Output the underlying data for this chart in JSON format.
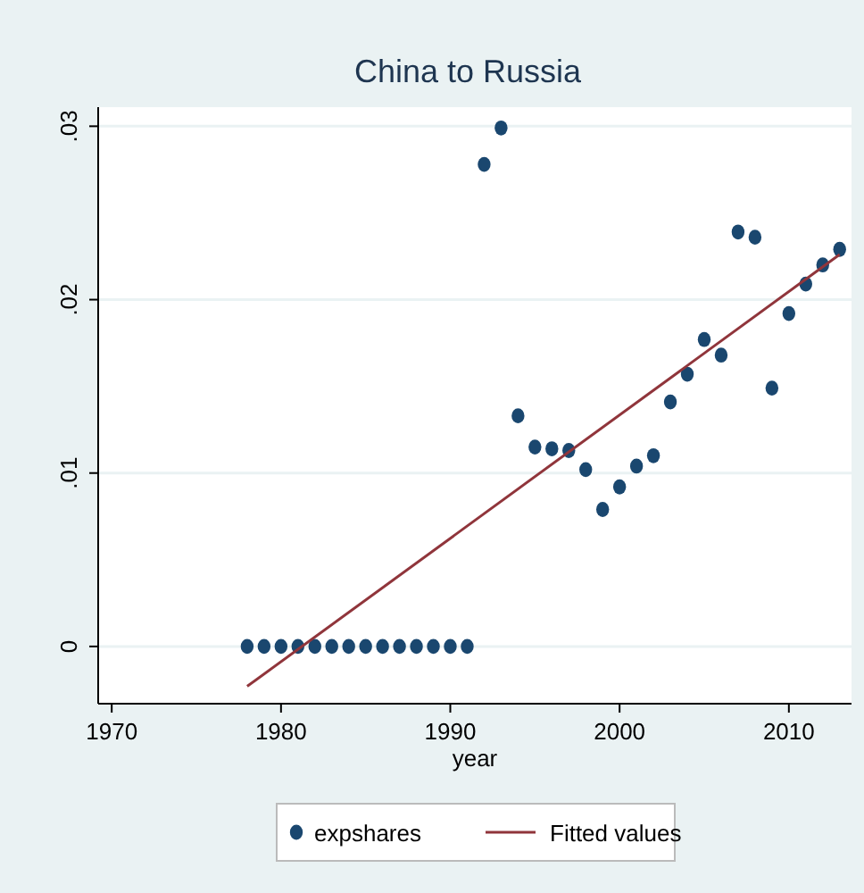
{
  "chart_data": {
    "type": "scatter",
    "title": "China to Russia",
    "xlabel": "year",
    "xlim": [
      1969.2,
      2013.7
    ],
    "xticks": [
      1970,
      1980,
      1990,
      2000,
      2010
    ],
    "ylim": [
      -0.0033,
      0.0311
    ],
    "yticks": [
      {
        "value": 0,
        "label": "0"
      },
      {
        "value": 0.01,
        "label": ".01"
      },
      {
        "value": 0.02,
        "label": ".02"
      },
      {
        "value": 0.03,
        "label": ".03"
      }
    ],
    "grid": "y",
    "legend": "bottom",
    "series": [
      {
        "name": "expshares",
        "marker": "circle",
        "color": "#1a476f",
        "x": [
          1978,
          1979,
          1980,
          1981,
          1982,
          1983,
          1984,
          1985,
          1986,
          1987,
          1988,
          1989,
          1990,
          1991,
          1992,
          1993,
          1994,
          1995,
          1996,
          1997,
          1998,
          1999,
          2000,
          2001,
          2002,
          2003,
          2004,
          2005,
          2006,
          2007,
          2008,
          2009,
          2010,
          2011,
          2012,
          2013
        ],
        "values": [
          0,
          0,
          0,
          0,
          0,
          0,
          0,
          0,
          0,
          0,
          0,
          0,
          0,
          0,
          0.0278,
          0.0299,
          0.0133,
          0.0115,
          0.0114,
          0.0113,
          0.0102,
          0.0079,
          0.0092,
          0.0104,
          0.011,
          0.0141,
          0.0157,
          0.0177,
          0.0168,
          0.0239,
          0.0236,
          0.0149,
          0.0192,
          0.0209,
          0.022,
          0.0229
        ]
      },
      {
        "name": "Fitted values",
        "type": "line",
        "line_style": "solid",
        "color": "#90353b",
        "x": [
          1978,
          2013
        ],
        "values": [
          -0.0023,
          0.0226
        ]
      }
    ]
  }
}
